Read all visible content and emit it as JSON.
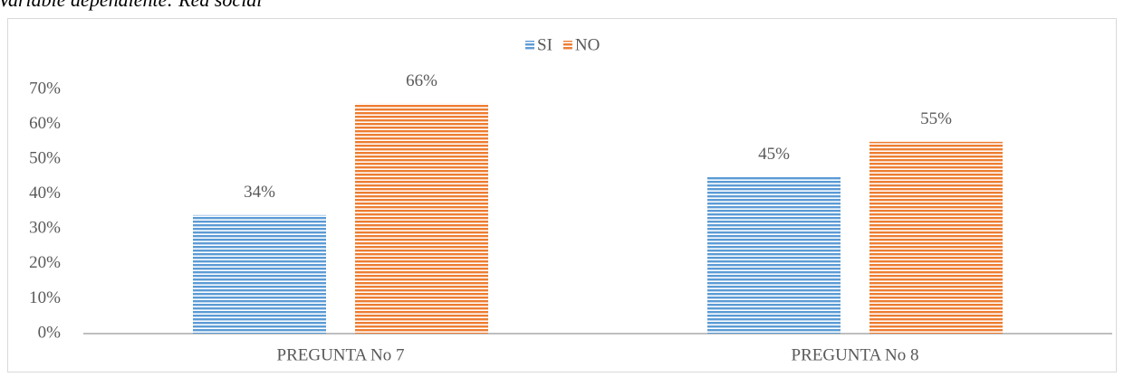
{
  "chart_data": {
    "type": "bar",
    "title": "Variable dependiente: Red social",
    "categories": [
      "PREGUNTA No 7",
      "PREGUNTA No 8"
    ],
    "series": [
      {
        "name": "SI",
        "color": "#5b9bd5",
        "values": [
          34,
          45
        ],
        "value_labels": [
          "34%",
          "45%"
        ]
      },
      {
        "name": "NO",
        "color": "#ed7d31",
        "values": [
          66,
          55
        ],
        "value_labels": [
          "66%",
          "55%"
        ]
      }
    ],
    "ylim": [
      0,
      70
    ],
    "yticks": [
      {
        "value": 0,
        "label": "0%"
      },
      {
        "value": 10,
        "label": "10%"
      },
      {
        "value": 20,
        "label": "20%"
      },
      {
        "value": 30,
        "label": "30%"
      },
      {
        "value": 40,
        "label": "40%"
      },
      {
        "value": 50,
        "label": "50%"
      },
      {
        "value": 60,
        "label": "60%"
      },
      {
        "value": 70,
        "label": "70%"
      }
    ],
    "grid": false,
    "legend": "top"
  }
}
